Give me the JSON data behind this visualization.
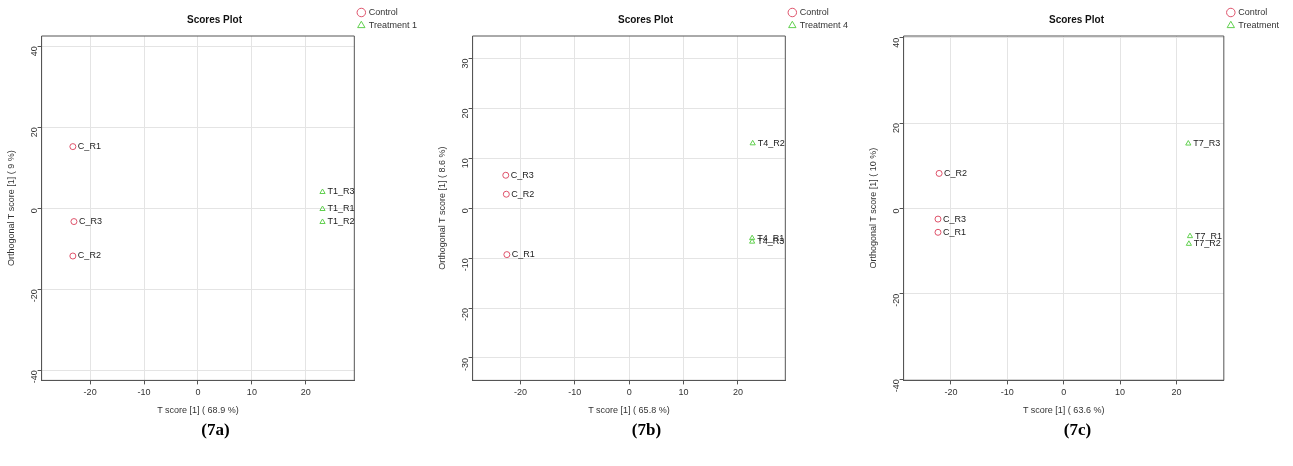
{
  "chart_data": [
    {
      "type": "scatter",
      "title": "Scores Plot",
      "xlabel": "T score [1] ( 68.9 %)",
      "ylabel": "Orthogonal T score [1] ( 9 %)",
      "xlim": [
        -29,
        29
      ],
      "xticks": [
        -20,
        -10,
        0,
        10,
        20
      ],
      "ylim": [
        -42.5,
        42.5
      ],
      "yticks": [
        -40,
        -20,
        0,
        20,
        40
      ],
      "grid": true,
      "legend": "top right",
      "series": [
        {
          "name": "Control",
          "color": "#df536b",
          "marker": "circle",
          "x": [
            -23.2,
            -23.0,
            -23.2
          ],
          "values": [
            15.2,
            -3.3,
            -11.8
          ]
        },
        {
          "name": "Treatment 1",
          "color": "#61d04f",
          "marker": "triangle",
          "x": [
            23.1,
            23.1,
            23.1
          ],
          "values": [
            4.0,
            -0.2,
            -3.4
          ]
        }
      ],
      "annotations": [
        {
          "text": "C_R1",
          "x": -23.2,
          "y": 15.2
        },
        {
          "text": "C_R3",
          "x": -23.0,
          "y": -3.3
        },
        {
          "text": "C_R2",
          "x": -23.2,
          "y": -11.8
        },
        {
          "text": "T1_R3",
          "x": 23.1,
          "y": 4.0
        },
        {
          "text": "T1_R1",
          "x": 23.1,
          "y": -0.2
        },
        {
          "text": "T1_R2",
          "x": 23.1,
          "y": -3.4
        },
        "(7a)"
      ]
    },
    {
      "type": "scatter",
      "title": "Scores Plot",
      "xlabel": "T score [1] ( 65.8 %)",
      "ylabel": "Orthogonal T score [1] ( 8.6 %)",
      "xlim": [
        -28.8,
        28.7
      ],
      "xticks": [
        -20,
        -10,
        0,
        10,
        20
      ],
      "ylim": [
        -34.5,
        34.5
      ],
      "yticks": [
        -30,
        -20,
        -10,
        0,
        10,
        20,
        30
      ],
      "grid": true,
      "legend": "top right",
      "series": [
        {
          "name": "Control",
          "color": "#df536b",
          "marker": "circle",
          "x": [
            -22.7,
            -22.6,
            -22.5
          ],
          "values": [
            6.6,
            2.8,
            -9.3
          ]
        },
        {
          "name": "Treatment 4",
          "color": "#61d04f",
          "marker": "triangle",
          "x": [
            22.7,
            22.6,
            22.6
          ],
          "values": [
            13.0,
            -6.0,
            -6.7
          ]
        }
      ],
      "annotations": [
        {
          "text": "C_R3",
          "x": -22.7,
          "y": 6.6
        },
        {
          "text": "C_R2",
          "x": -22.6,
          "y": 2.8
        },
        {
          "text": "C_R1",
          "x": -22.5,
          "y": -9.3
        },
        {
          "text": "T4_R2",
          "x": 22.7,
          "y": 13.0
        },
        {
          "text": "T4_R1",
          "x": 22.6,
          "y": -6.0
        },
        {
          "text": "T4_R3",
          "x": 22.6,
          "y": -6.7
        },
        "(7b)"
      ]
    },
    {
      "type": "scatter",
      "title": "Scores Plot",
      "xlabel": "T score [1] ( 63.6 %)",
      "ylabel": "Orthogonal T score [1] ( 10 %)",
      "xlim": [
        -28.4,
        28.4
      ],
      "xticks": [
        -20,
        -10,
        0,
        10,
        20
      ],
      "ylim": [
        -40.3,
        40.4
      ],
      "yticks": [
        -40,
        -20,
        0,
        20,
        40
      ],
      "grid": true,
      "legend": "top right",
      "series": [
        {
          "name": "Control",
          "color": "#df536b",
          "marker": "circle",
          "x": [
            -22.1,
            -22.3,
            -22.3
          ],
          "values": [
            8.2,
            -2.5,
            -5.6
          ]
        },
        {
          "name": "Treatment",
          "color": "#61d04f",
          "marker": "triangle",
          "x": [
            22.1,
            22.4,
            22.2
          ],
          "values": [
            15.2,
            -6.5,
            -8.3
          ]
        }
      ],
      "annotations": [
        {
          "text": "C_R2",
          "x": -22.1,
          "y": 8.2
        },
        {
          "text": "C_R3",
          "x": -22.3,
          "y": -2.5
        },
        {
          "text": "C_R1",
          "x": -22.3,
          "y": -5.6
        },
        {
          "text": "T7_R3",
          "x": 22.1,
          "y": 15.2
        },
        {
          "text": "T7_R1",
          "x": 22.4,
          "y": -6.5
        },
        {
          "text": "T7_R2",
          "x": 22.2,
          "y": -8.3
        },
        "(7c)"
      ]
    }
  ]
}
